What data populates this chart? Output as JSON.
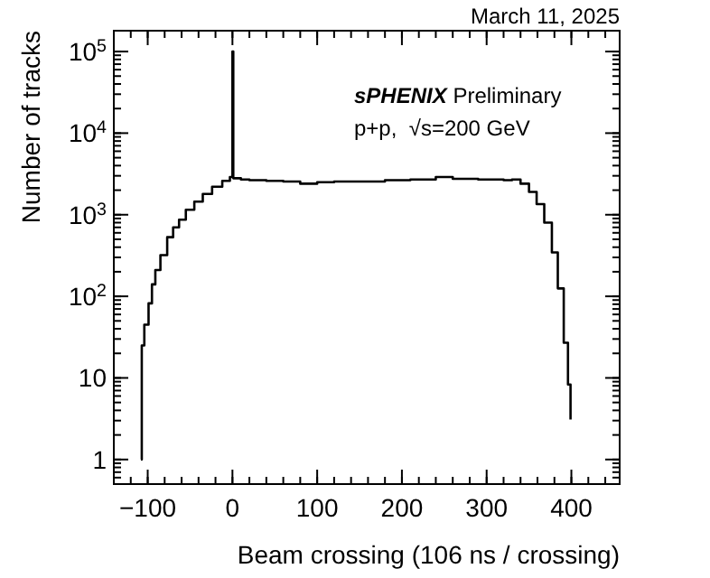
{
  "chart_data": {
    "type": "step",
    "xlabel": "Beam crossing (106 ns / crossing)",
    "ylabel": "Number of tracks",
    "annotations": [
      "March 11, 2025",
      "sPHENIX Preliminary",
      "p+p,  √s=200 GeV"
    ],
    "x": [
      -108,
      -107,
      -104,
      -99,
      -95,
      -91,
      -85,
      -77,
      -70,
      -63,
      -55,
      -45,
      -35,
      -24,
      -12,
      -3,
      -1,
      0,
      1,
      10,
      20,
      40,
      60,
      80,
      100,
      120,
      150,
      180,
      210,
      240,
      260,
      290,
      320,
      330,
      340,
      350,
      359,
      368,
      377,
      384,
      391,
      396,
      399
    ],
    "series": [
      {
        "color": "#000000",
        "values": [
          1,
          25,
          45,
          82,
          140,
          210,
          320,
          530,
          700,
          870,
          1150,
          1450,
          1800,
          2200,
          2600,
          2900,
          2900,
          100000,
          2800,
          2700,
          2650,
          2600,
          2550,
          2400,
          2500,
          2550,
          2550,
          2650,
          2700,
          2900,
          2750,
          2700,
          2650,
          2700,
          2400,
          1900,
          1350,
          800,
          345,
          125,
          27,
          8.3,
          3.1
        ]
      }
    ],
    "xlim": [
      -140,
      457
    ],
    "xticks": [
      -100,
      0,
      100,
      200,
      300,
      400
    ],
    "ylim": [
      0.5,
      180000
    ],
    "yticks": [
      1,
      10,
      {
        "value": 100,
        "label": "10$^{2}$"
      },
      {
        "value": 1000,
        "label": "10$^{3}$"
      },
      {
        "value": 10000,
        "label": "10$^{4}$"
      },
      {
        "value": 100000,
        "label": "10$^{5}$"
      }
    ],
    "log": true,
    "grid": false,
    "line_style": "solid"
  }
}
